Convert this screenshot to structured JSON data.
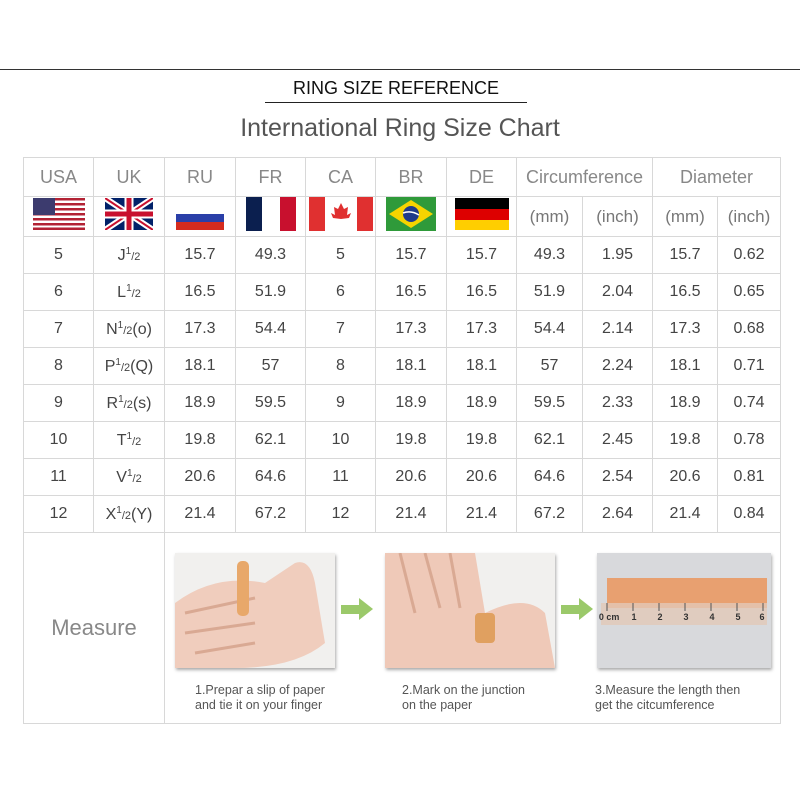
{
  "header": {
    "reference": "RING SIZE REFERENCE",
    "title": "International Ring Size Chart"
  },
  "columns": [
    "USA",
    "UK",
    "RU",
    "FR",
    "CA",
    "BR",
    "DE",
    "Circumference",
    "Diameter"
  ],
  "units": [
    "(mm)",
    "(inch)",
    "(mm)",
    "(inch)"
  ],
  "flags": [
    "us-flag",
    "uk-flag",
    "russia-flag",
    "france-flag",
    "canada-flag",
    "brazil-flag",
    "germany-flag"
  ],
  "rows": [
    {
      "usa": "5",
      "uk": "J",
      "uk_suffix": "",
      "ru": "15.7",
      "fr": "49.3",
      "ca": "5",
      "br": "15.7",
      "de": "15.7",
      "circ_mm": "49.3",
      "circ_in": "1.95",
      "dia_mm": "15.7",
      "dia_in": "0.62"
    },
    {
      "usa": "6",
      "uk": "L",
      "uk_suffix": "",
      "ru": "16.5",
      "fr": "51.9",
      "ca": "6",
      "br": "16.5",
      "de": "16.5",
      "circ_mm": "51.9",
      "circ_in": "2.04",
      "dia_mm": "16.5",
      "dia_in": "0.65"
    },
    {
      "usa": "7",
      "uk": "N",
      "uk_suffix": "(o)",
      "ru": "17.3",
      "fr": "54.4",
      "ca": "7",
      "br": "17.3",
      "de": "17.3",
      "circ_mm": "54.4",
      "circ_in": "2.14",
      "dia_mm": "17.3",
      "dia_in": "0.68"
    },
    {
      "usa": "8",
      "uk": "P",
      "uk_suffix": "(Q)",
      "ru": "18.1",
      "fr": "57",
      "ca": "8",
      "br": "18.1",
      "de": "18.1",
      "circ_mm": "57",
      "circ_in": "2.24",
      "dia_mm": "18.1",
      "dia_in": "0.71"
    },
    {
      "usa": "9",
      "uk": "R",
      "uk_suffix": "(s)",
      "ru": "18.9",
      "fr": "59.5",
      "ca": "9",
      "br": "18.9",
      "de": "18.9",
      "circ_mm": "59.5",
      "circ_in": "2.33",
      "dia_mm": "18.9",
      "dia_in": "0.74"
    },
    {
      "usa": "10",
      "uk": "T",
      "uk_suffix": "",
      "ru": "19.8",
      "fr": "62.1",
      "ca": "10",
      "br": "19.8",
      "de": "19.8",
      "circ_mm": "62.1",
      "circ_in": "2.45",
      "dia_mm": "19.8",
      "dia_in": "0.78"
    },
    {
      "usa": "11",
      "uk": "V",
      "uk_suffix": "",
      "ru": "20.6",
      "fr": "64.6",
      "ca": "11",
      "br": "20.6",
      "de": "20.6",
      "circ_mm": "64.6",
      "circ_in": "2.54",
      "dia_mm": "20.6",
      "dia_in": "0.81"
    },
    {
      "usa": "12",
      "uk": "X",
      "uk_suffix": "(Y)",
      "ru": "21.4",
      "fr": "67.2",
      "ca": "12",
      "br": "21.4",
      "de": "21.4",
      "circ_mm": "67.2",
      "circ_in": "2.64",
      "dia_mm": "21.4",
      "dia_in": "0.84"
    }
  ],
  "half": {
    "num": "1",
    "den": "/2"
  },
  "measure": {
    "label": "Measure",
    "steps": [
      {
        "line1": "1.Prepar a slip of paper",
        "line2": "and tie it on your finger"
      },
      {
        "line1": "2.Mark on the junction",
        "line2": "on the paper"
      },
      {
        "line1": "3.Measure the length then",
        "line2": "get the citcumference"
      }
    ],
    "ruler_labels": [
      "0 cm",
      "1",
      "2",
      "3",
      "4",
      "5",
      "6"
    ]
  },
  "colors": {
    "arrow": "#9bc96a",
    "grid": "#d8d8d8",
    "paper": "#e8a070"
  }
}
